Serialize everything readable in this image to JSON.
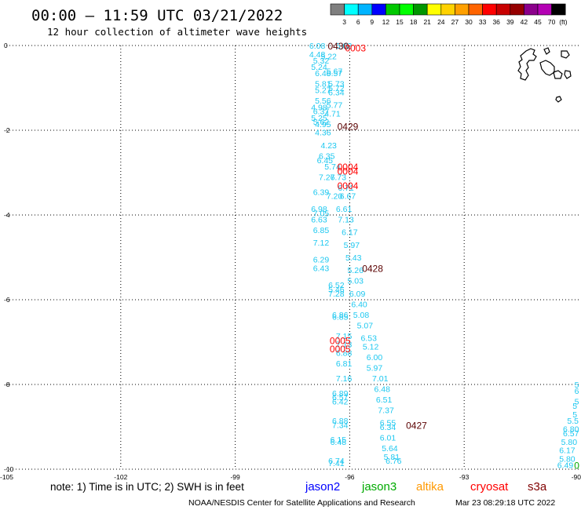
{
  "header": {
    "title": "00:00 – 11:59 UTC 03/21/2022",
    "subtitle": "12 hour collection of altimeter wave heights"
  },
  "colorbar": {
    "unit_label": "(ft)",
    "ticks": [
      "3",
      "6",
      "9",
      "12",
      "15",
      "18",
      "21",
      "24",
      "27",
      "30",
      "33",
      "36",
      "39",
      "42",
      "45",
      "70"
    ],
    "colors": [
      "#7f7f7f",
      "#00ffff",
      "#00b4ff",
      "#0000ff",
      "#00c800",
      "#00ff00",
      "#009600",
      "#ffff00",
      "#ffd200",
      "#ffa000",
      "#ff6400",
      "#ff0000",
      "#c80000",
      "#960000",
      "#8b008b",
      "#b400b4",
      "#000000"
    ]
  },
  "footer": {
    "note": "note: 1) Time is in UTC; 2) SWH is in feet",
    "legend": [
      {
        "label": "jason2",
        "color": "#0000ff"
      },
      {
        "label": "jason3",
        "color": "#00aa00"
      },
      {
        "label": "altika",
        "color": "#ff9900"
      },
      {
        "label": "cryosat",
        "color": "#ff0000"
      },
      {
        "label": "s3a",
        "color": "#800000"
      }
    ],
    "credit": "NOAA/NESDIS Center for Satellite Applications and Research",
    "timestamp": "Mar 23 08:29:18 UTC 2022"
  },
  "chart_data": {
    "type": "scatter",
    "xlim": [
      -105,
      -90
    ],
    "ylim": [
      -10,
      0
    ],
    "x_ticks": [
      -105,
      -102,
      -99,
      -96,
      -93,
      -90
    ],
    "y_ticks": [
      0,
      -2,
      -4,
      -6,
      -8,
      -10
    ],
    "x_tick_labels": [
      "-105",
      "-102",
      "-99",
      "-96",
      "-93",
      "-90"
    ],
    "y_tick_labels": [
      "0",
      "-2",
      "-4",
      "-6",
      "-8",
      "-10"
    ],
    "grid": true,
    "wave_color": "#1ec8f0",
    "series": [
      {
        "values": [
          [
            -96.85,
            0.0,
            "6.08"
          ],
          [
            -96.15,
            0.0,
            "5.02"
          ],
          [
            -96.85,
            -0.2,
            "4.48"
          ],
          [
            -96.55,
            -0.25,
            "5.22"
          ],
          [
            -96.75,
            -0.35,
            "5.32"
          ],
          [
            -96.8,
            -0.5,
            "5.24"
          ],
          [
            -96.4,
            -0.6,
            "5.67"
          ],
          [
            -96.7,
            -0.65,
            "6.40"
          ],
          [
            -96.4,
            -0.65,
            "5.57"
          ],
          [
            -96.7,
            -0.9,
            "5.81"
          ],
          [
            -96.35,
            -0.9,
            "5.73"
          ],
          [
            -96.35,
            -1.0,
            "5.72"
          ],
          [
            -96.7,
            -1.05,
            "5.27"
          ],
          [
            -96.35,
            -1.1,
            "6.34"
          ],
          [
            -96.7,
            -1.3,
            "5.56"
          ],
          [
            -96.4,
            -1.4,
            "5.77"
          ],
          [
            -96.8,
            -1.45,
            "4.98"
          ],
          [
            -96.75,
            -1.55,
            "6.37"
          ],
          [
            -96.45,
            -1.6,
            "4.71"
          ],
          [
            -96.8,
            -1.7,
            "5.25"
          ],
          [
            -96.75,
            -1.8,
            "5.62"
          ],
          [
            -96.7,
            -1.85,
            "4.95"
          ],
          [
            -96.7,
            -2.05,
            "4.36"
          ],
          [
            -96.55,
            -2.35,
            "4.23"
          ],
          [
            -96.6,
            -2.6,
            "6.35"
          ],
          [
            -96.65,
            -2.7,
            "6.45"
          ],
          [
            -96.45,
            -2.85,
            "5.74"
          ],
          [
            -96.6,
            -3.1,
            "7.27"
          ],
          [
            -96.3,
            -3.1,
            "6.73"
          ],
          [
            -96.1,
            -3.35,
            "6.71"
          ],
          [
            -96.75,
            -3.45,
            "6.39"
          ],
          [
            -96.4,
            -3.55,
            "7.20"
          ],
          [
            -96.05,
            -3.55,
            "6.67"
          ],
          [
            -96.8,
            -3.85,
            "6.98"
          ],
          [
            -96.15,
            -3.85,
            "6.61"
          ],
          [
            -96.75,
            -3.95,
            "7.05"
          ],
          [
            -96.8,
            -4.1,
            "6.63"
          ],
          [
            -96.1,
            -4.1,
            "7.13"
          ],
          [
            -96.75,
            -4.35,
            "6.85"
          ],
          [
            -96.0,
            -4.4,
            "6.17"
          ],
          [
            -96.75,
            -4.65,
            "7.12"
          ],
          [
            -95.95,
            -4.7,
            "5.97"
          ],
          [
            -96.75,
            -5.05,
            "6.29"
          ],
          [
            -95.9,
            -5.0,
            "5.43"
          ],
          [
            -96.75,
            -5.25,
            "6.43"
          ],
          [
            -95.85,
            -5.3,
            "5.26"
          ],
          [
            -95.85,
            -5.55,
            "5.03"
          ],
          [
            -96.35,
            -5.65,
            "6.52"
          ],
          [
            -96.35,
            -5.75,
            "5.46"
          ],
          [
            -96.35,
            -5.85,
            "7.28"
          ],
          [
            -95.8,
            -5.85,
            "6.09"
          ],
          [
            -95.75,
            -6.1,
            "6.40"
          ],
          [
            -96.25,
            -6.35,
            "6.86"
          ],
          [
            -95.7,
            -6.35,
            "5.08"
          ],
          [
            -96.25,
            -6.4,
            "6.85"
          ],
          [
            -95.6,
            -6.6,
            "5.07"
          ],
          [
            -96.15,
            -6.85,
            "7.15"
          ],
          [
            -95.5,
            -6.9,
            "6.53"
          ],
          [
            -96.15,
            -7.05,
            "7.13"
          ],
          [
            -95.45,
            -7.1,
            "5.12"
          ],
          [
            -96.15,
            -7.25,
            "6.88"
          ],
          [
            -95.35,
            -7.35,
            "6.00"
          ],
          [
            -96.15,
            -7.5,
            "6.81"
          ],
          [
            -95.35,
            -7.6,
            "5.97"
          ],
          [
            -96.15,
            -7.85,
            "7.16"
          ],
          [
            -95.2,
            -7.85,
            "7.01"
          ],
          [
            -96.25,
            -8.2,
            "6.89"
          ],
          [
            -95.15,
            -8.1,
            "6.48"
          ],
          [
            -96.25,
            -8.3,
            "6.57"
          ],
          [
            -95.1,
            -8.35,
            "6.51"
          ],
          [
            -96.25,
            -8.4,
            "6.42"
          ],
          [
            -95.05,
            -8.6,
            "7.37"
          ],
          [
            -96.25,
            -8.85,
            "6.88"
          ],
          [
            -95.0,
            -8.9,
            "6.55"
          ],
          [
            -96.25,
            -8.95,
            "7.34"
          ],
          [
            -95.0,
            -9.0,
            "6.34"
          ],
          [
            -95.0,
            -9.25,
            "6.01"
          ],
          [
            -96.3,
            -9.3,
            "6.15"
          ],
          [
            -96.3,
            -9.35,
            "6.48"
          ],
          [
            -94.95,
            -9.5,
            "5.64"
          ],
          [
            -94.9,
            -9.7,
            "5.81"
          ],
          [
            -96.35,
            -9.8,
            "6.74"
          ],
          [
            -96.35,
            -9.85,
            "7.41"
          ],
          [
            -94.85,
            -9.8,
            "6.76"
          ],
          [
            -90.05,
            -8.0,
            "5"
          ],
          [
            -90.05,
            -8.15,
            "6"
          ],
          [
            -90.05,
            -8.4,
            "5"
          ],
          [
            -90.1,
            -8.5,
            "5"
          ],
          [
            -90.1,
            -8.7,
            "5"
          ],
          [
            -90.15,
            -8.85,
            "5.5"
          ],
          [
            -90.2,
            -9.05,
            "6.80"
          ],
          [
            -90.2,
            -9.15,
            "6.57"
          ],
          [
            -90.25,
            -9.35,
            "5.80"
          ],
          [
            -90.3,
            -9.55,
            "6.17"
          ],
          [
            -90.3,
            -9.75,
            "5.80"
          ],
          [
            -90.35,
            -9.9,
            "6.49"
          ]
        ]
      }
    ],
    "time_labels": [
      {
        "x": -96.3,
        "y": 0.0,
        "label": "0430",
        "color": "#5a0000"
      },
      {
        "x": -95.85,
        "y": -0.05,
        "label": "0003",
        "color": "#ff0000"
      },
      {
        "x": -96.05,
        "y": -1.9,
        "label": "0429",
        "color": "#5a0000"
      },
      {
        "x": -96.05,
        "y": -2.85,
        "label": "0004",
        "color": "#ff0000"
      },
      {
        "x": -96.05,
        "y": -2.95,
        "label": "0004",
        "color": "#ff0000"
      },
      {
        "x": -96.05,
        "y": -3.3,
        "label": "0004",
        "color": "#ff0000"
      },
      {
        "x": -95.4,
        "y": -5.25,
        "label": "0428",
        "color": "#5a0000"
      },
      {
        "x": -96.25,
        "y": -6.95,
        "label": "0005",
        "color": "#ff0000"
      },
      {
        "x": -96.25,
        "y": -7.15,
        "label": "0005",
        "color": "#ff0000"
      },
      {
        "x": -94.25,
        "y": -8.95,
        "label": "0427",
        "color": "#5a0000"
      }
    ],
    "edge_marker": {
      "x": -90.05,
      "y": -9.9,
      "label": "0",
      "color": "#00aa00"
    }
  }
}
